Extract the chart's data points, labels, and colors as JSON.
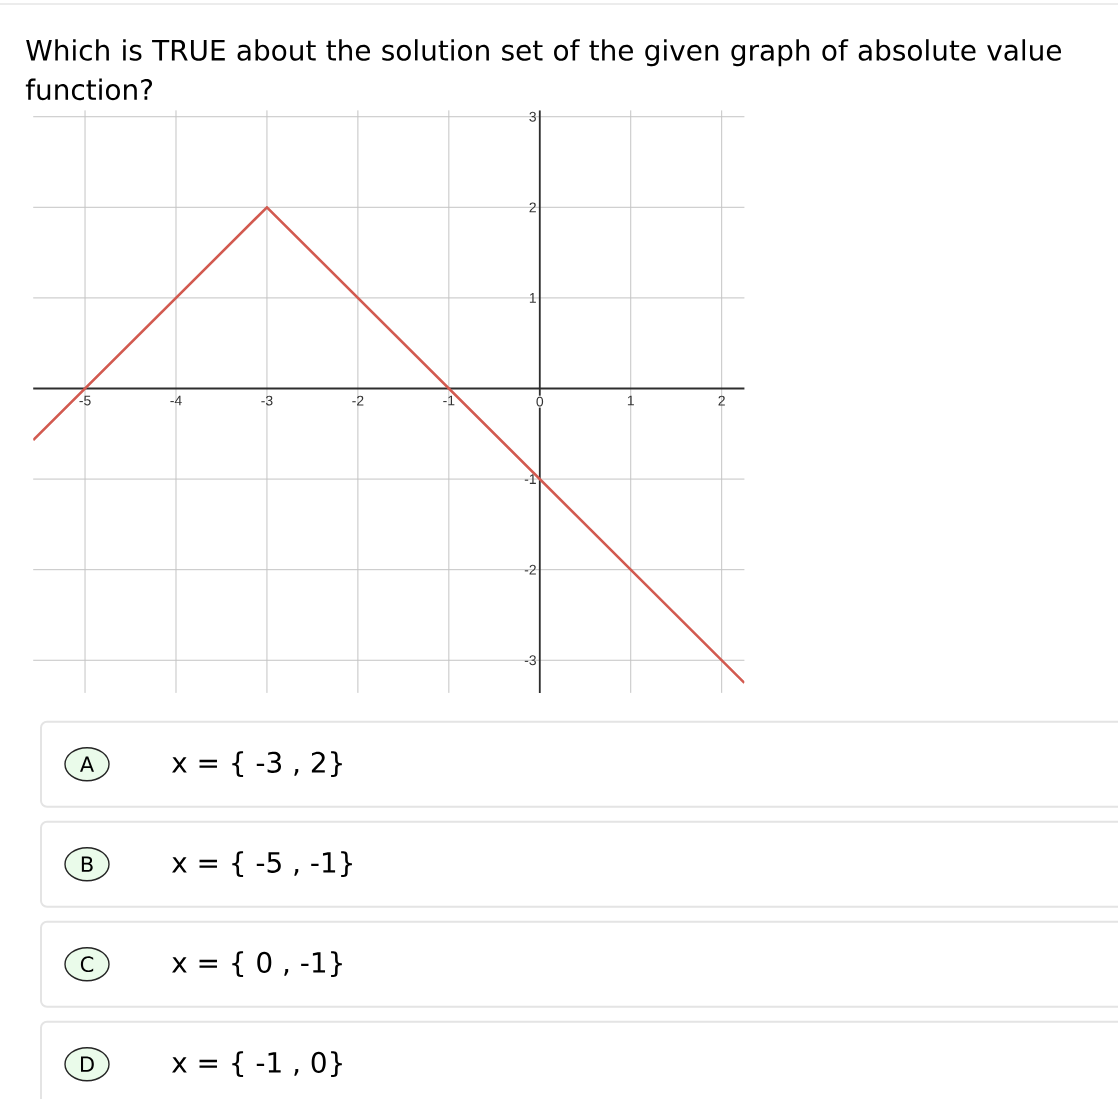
{
  "chart_data": {
    "type": "line",
    "title": "Which is TRUE about the solution set of the given graph of absolute value function?",
    "x": [
      -5.57,
      -3,
      2.25
    ],
    "values": [
      -0.57,
      2,
      -3.25
    ],
    "color": "#d25a50",
    "xlim": [
      -5.57,
      2.25
    ],
    "ylim": [
      -3.36,
      3.07
    ],
    "xticks": [
      -5,
      -4,
      -3,
      -2,
      -1,
      0,
      1,
      2
    ],
    "yticks": [
      -3,
      -2,
      -1,
      1,
      2,
      3
    ],
    "grid": true,
    "annotations": [
      "A",
      "x = { -3 , 2}",
      "B",
      "x = { -5 , -1}",
      "C",
      "x = { 0 , -1}",
      "D",
      "x = { -1 , 0}"
    ]
  }
}
